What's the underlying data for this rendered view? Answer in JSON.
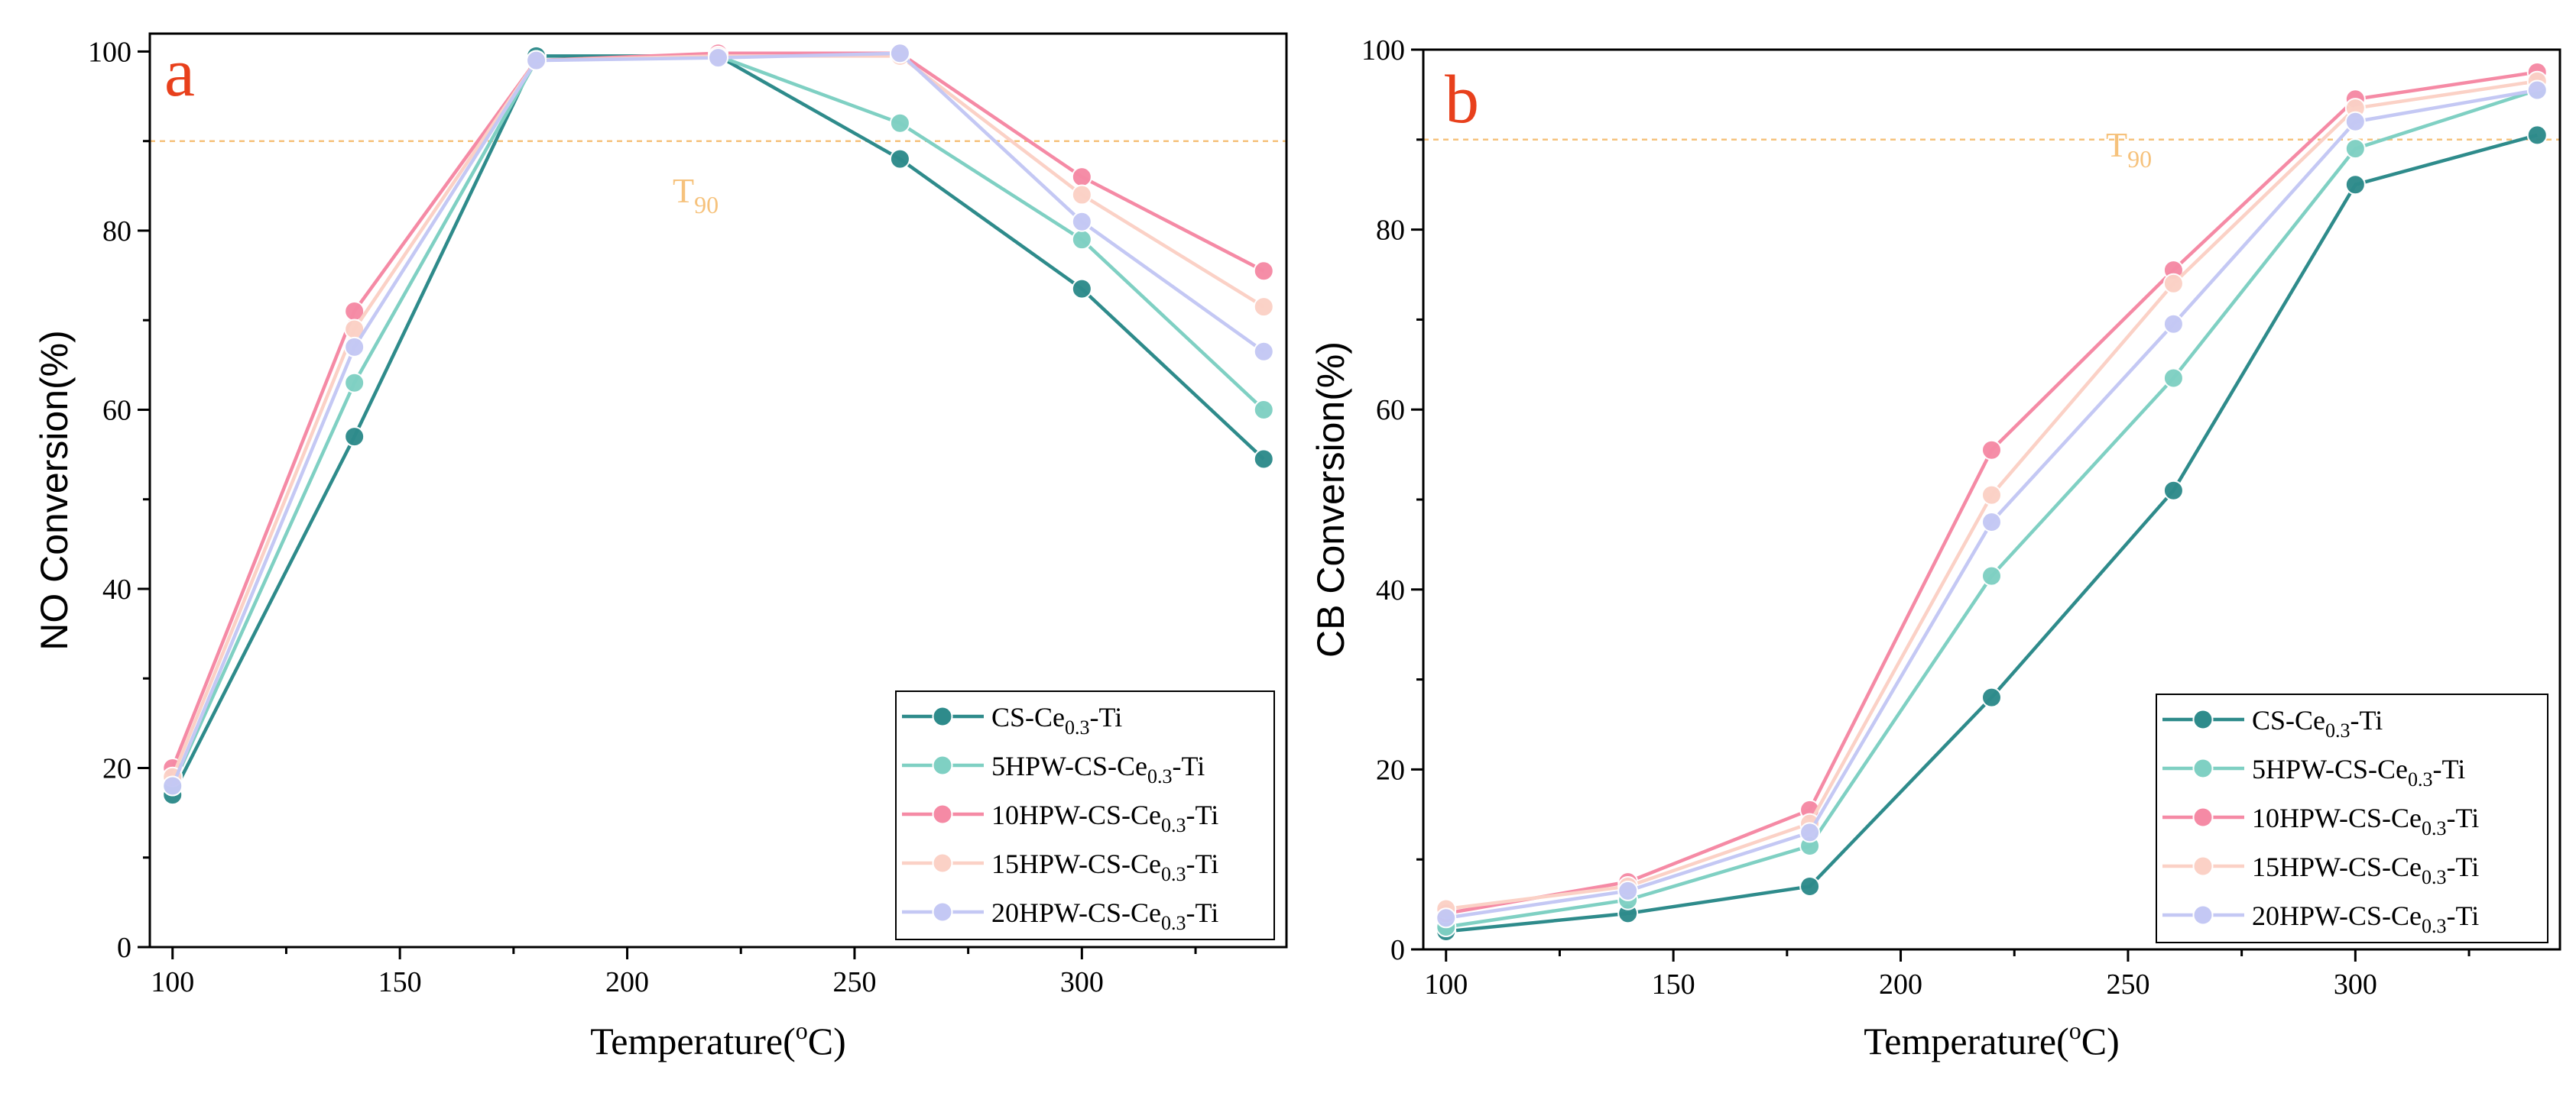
{
  "colors": {
    "frame": "#000000",
    "t90_line": "#f6c27c",
    "panel_label": "#e8401c"
  },
  "chart_data": [
    {
      "type": "line",
      "panel_label": "a",
      "xlabel": "Temperature(",
      "xlabel_unit": "o",
      "xlabel_end": "C)",
      "ylabel": "NO Conversion(%)",
      "xlim": [
        95,
        345
      ],
      "ylim": [
        0,
        102
      ],
      "xticks": [
        100,
        150,
        200,
        250,
        300
      ],
      "yticks": [
        0,
        20,
        40,
        60,
        80,
        100
      ],
      "reference_line": {
        "y": 90,
        "label": "T",
        "label_sub": "90"
      },
      "x": [
        100,
        140,
        180,
        220,
        260,
        300,
        340
      ],
      "legend_position": "bottom-right",
      "series": [
        {
          "name": "CS-Ce0.3-Ti",
          "prefix": "CS-Ce",
          "sub": "0.3",
          "suffix": "-Ti",
          "color": "#2e8b8b",
          "values": [
            17,
            57,
            99.5,
            99.5,
            88,
            73.5,
            54.5
          ]
        },
        {
          "name": "5HPW-CS-Ce0.3-Ti",
          "prefix": "5HPW-CS-Ce",
          "sub": "0.3",
          "suffix": "-Ti",
          "color": "#7fd0c3",
          "values": [
            18,
            63,
            99,
            99.5,
            92,
            79,
            60
          ]
        },
        {
          "name": "10HPW-CS-Ce0.3-Ti",
          "prefix": "10HPW-CS-Ce",
          "sub": "0.3",
          "suffix": "-Ti",
          "color": "#f58aa5",
          "values": [
            20,
            71,
            99,
            99.8,
            99.8,
            86,
            75.5
          ]
        },
        {
          "name": "15HPW-CS-Ce0.3-Ti",
          "prefix": "15HPW-CS-Ce",
          "sub": "0.3",
          "suffix": "-Ti",
          "color": "#fbd1c6",
          "values": [
            19,
            69,
            99,
            99.5,
            99.5,
            84,
            71.5
          ]
        },
        {
          "name": "20HPW-CS-Ce0.3-Ti",
          "prefix": "20HPW-CS-Ce",
          "sub": "0.3",
          "suffix": "-Ti",
          "color": "#c4c8f4",
          "values": [
            18,
            67,
            99,
            99.3,
            99.8,
            81,
            66.5
          ]
        }
      ]
    },
    {
      "type": "line",
      "panel_label": "b",
      "xlabel": "Temperature(",
      "xlabel_unit": "o",
      "xlabel_end": "C)",
      "ylabel": "CB Conversion(%)",
      "xlim": [
        95,
        345
      ],
      "ylim": [
        0,
        100
      ],
      "xticks": [
        100,
        150,
        200,
        250,
        300
      ],
      "yticks": [
        0,
        20,
        40,
        60,
        80,
        100
      ],
      "reference_line": {
        "y": 90,
        "label": "T",
        "label_sub": "90"
      },
      "x": [
        100,
        140,
        180,
        220,
        260,
        300,
        340
      ],
      "legend_position": "bottom-right",
      "series": [
        {
          "name": "CS-Ce0.3-Ti",
          "prefix": "CS-Ce",
          "sub": "0.3",
          "suffix": "-Ti",
          "color": "#2e8b8b",
          "values": [
            2,
            4,
            7,
            28,
            51,
            85,
            90.5
          ]
        },
        {
          "name": "5HPW-CS-Ce0.3-Ti",
          "prefix": "5HPW-CS-Ce",
          "sub": "0.3",
          "suffix": "-Ti",
          "color": "#7fd0c3",
          "values": [
            2.5,
            5.5,
            11.5,
            41.5,
            63.5,
            89,
            95.5
          ]
        },
        {
          "name": "10HPW-CS-Ce0.3-Ti",
          "prefix": "10HPW-CS-Ce",
          "sub": "0.3",
          "suffix": "-Ti",
          "color": "#f58aa5",
          "values": [
            4,
            7.5,
            15.5,
            55.5,
            75.5,
            94.5,
            97.5
          ]
        },
        {
          "name": "15HPW-CS-Ce0.3-Ti",
          "prefix": "15HPW-CS-Ce",
          "sub": "0.3",
          "suffix": "-Ti",
          "color": "#fbd1c6",
          "values": [
            4.5,
            7,
            14,
            50.5,
            74,
            93.5,
            96.5
          ]
        },
        {
          "name": "20HPW-CS-Ce0.3-Ti",
          "prefix": "20HPW-CS-Ce",
          "sub": "0.3",
          "suffix": "-Ti",
          "color": "#c4c8f4",
          "values": [
            3.5,
            6.5,
            13,
            47.5,
            69.5,
            92,
            95.5
          ]
        }
      ]
    }
  ]
}
